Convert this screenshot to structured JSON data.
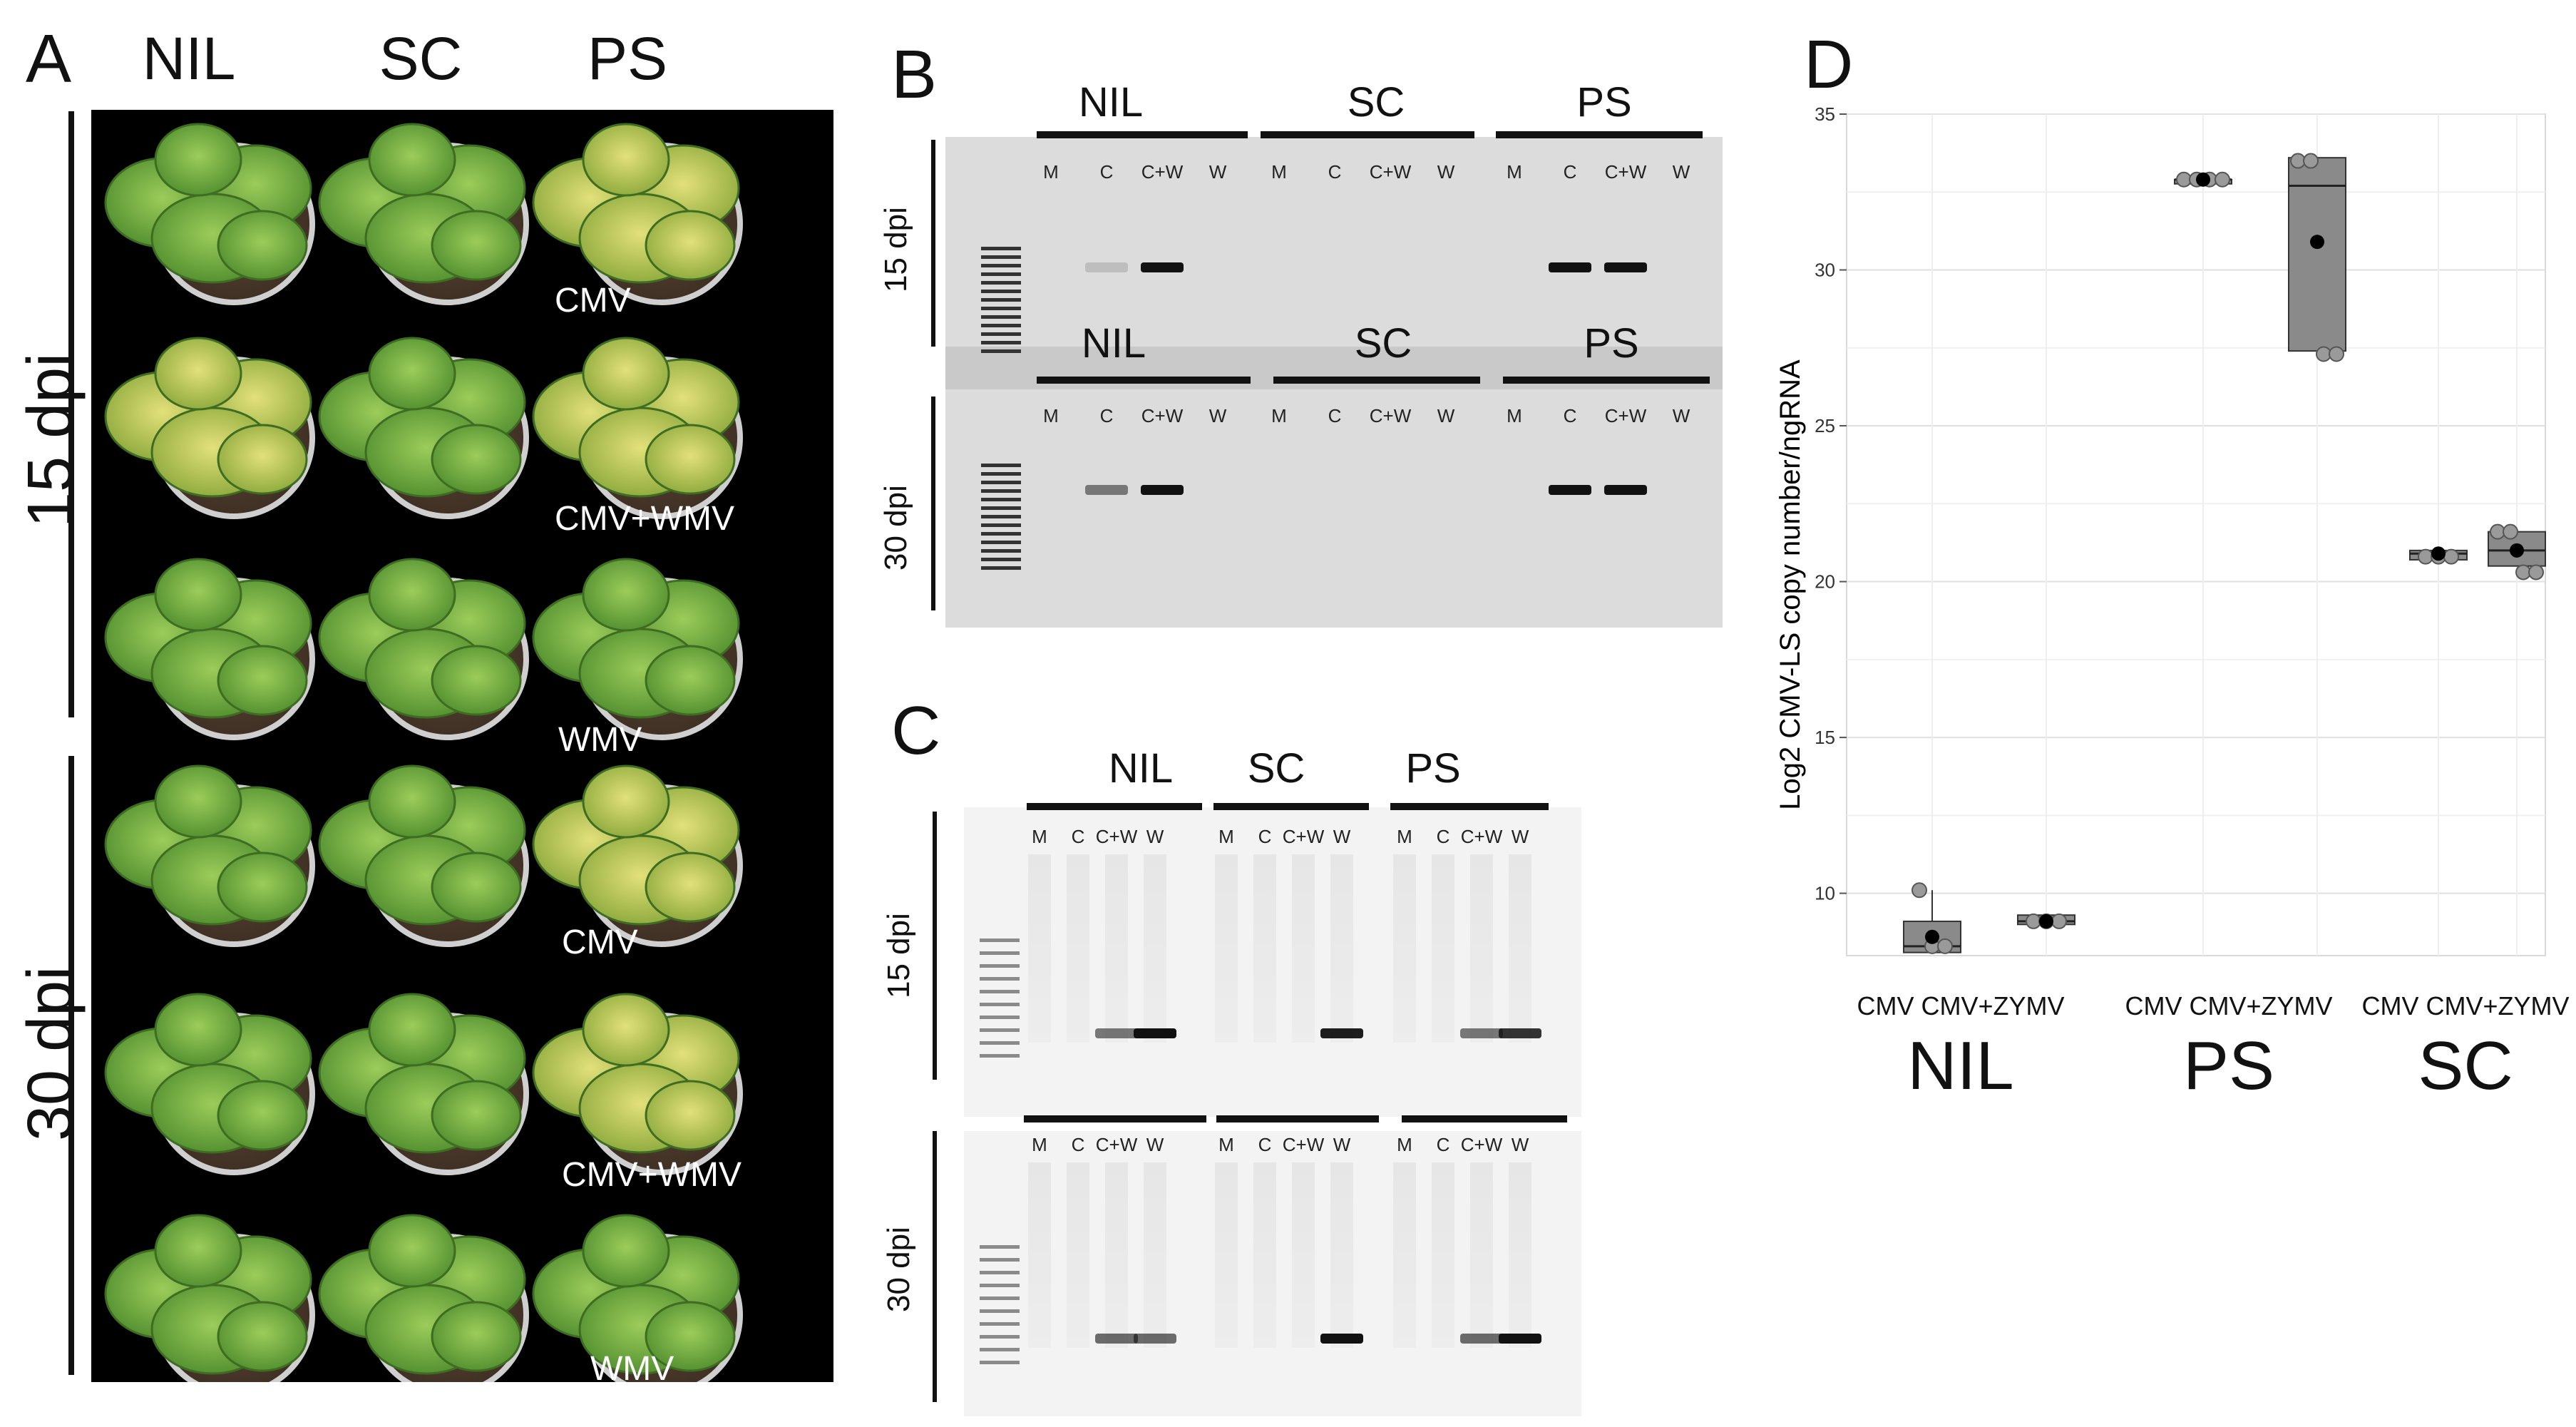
{
  "panels": {
    "A": {
      "letter": "A",
      "columns": [
        "NIL",
        "SC",
        "PS"
      ],
      "row_groups": [
        {
          "label": "15 dpi"
        },
        {
          "label": "30 dpi"
        }
      ],
      "treatments": [
        "CMV",
        "CMV+WMV",
        "WMV",
        "CMV",
        "CMV+WMV",
        "WMV"
      ]
    },
    "B": {
      "letter": "B",
      "groups": [
        "NIL",
        "SC",
        "PS"
      ],
      "lanes": [
        "M",
        "C",
        "C+W",
        "W"
      ],
      "rows": [
        {
          "label": "15 dpi"
        },
        {
          "label": "30 dpi"
        }
      ]
    },
    "C": {
      "letter": "C",
      "groups": [
        "NIL",
        "SC",
        "PS"
      ],
      "lanes": [
        "M",
        "C",
        "C+W",
        "W"
      ],
      "rows": [
        {
          "label": "15 dpi"
        },
        {
          "label": "30 dpi"
        }
      ]
    },
    "D": {
      "letter": "D",
      "group_labels": [
        "NIL",
        "PS",
        "SC"
      ],
      "category_labels": [
        "CMV CMV+ZYMV",
        "CMV CMV+ZYMV",
        "CMV CMV+ZYMV"
      ]
    }
  },
  "chart_data": {
    "type": "box",
    "ylabel": "Log2 CMV-LS copy number/ngRNA",
    "ylim": [
      8,
      35
    ],
    "yticks": [
      10,
      15,
      20,
      25,
      30,
      35
    ],
    "grid": true,
    "categories": [
      "NIL CMV",
      "NIL CMV+ZYMV",
      "PS CMV",
      "PS CMV+ZYMV",
      "SC CMV",
      "SC CMV+ZYMV"
    ],
    "boxes": [
      {
        "group": "NIL",
        "treatment": "CMV",
        "q1": 8.1,
        "median": 8.3,
        "q3": 9.1,
        "whisker_low": 8.1,
        "whisker_high": 10.1,
        "mean": 8.6,
        "points": [
          10.1,
          8.3,
          8.3
        ]
      },
      {
        "group": "NIL",
        "treatment": "CMV+ZYMV",
        "q1": 9.0,
        "median": 9.1,
        "q3": 9.3,
        "whisker_low": 9.0,
        "whisker_high": 9.3,
        "mean": 9.1,
        "points": [
          9.1,
          9.1,
          9.1
        ]
      },
      {
        "group": "PS",
        "treatment": "CMV",
        "q1": 32.8,
        "median": 32.9,
        "q3": 32.9,
        "whisker_low": 32.8,
        "whisker_high": 32.9,
        "mean": 32.9,
        "points": [
          32.9,
          32.9,
          32.9,
          32.9
        ]
      },
      {
        "group": "PS",
        "treatment": "CMV+ZYMV",
        "q1": 27.4,
        "median": 32.7,
        "q3": 33.6,
        "whisker_low": 27.4,
        "whisker_high": 33.6,
        "mean": 30.9,
        "points": [
          33.5,
          33.5,
          27.3,
          27.3
        ]
      },
      {
        "group": "SC",
        "treatment": "CMV",
        "q1": 20.7,
        "median": 20.9,
        "q3": 21.0,
        "whisker_low": 20.7,
        "whisker_high": 21.0,
        "mean": 20.9,
        "points": [
          20.8,
          20.8,
          20.8
        ]
      },
      {
        "group": "SC",
        "treatment": "CMV+ZYMV",
        "q1": 20.5,
        "median": 21.0,
        "q3": 21.6,
        "whisker_low": 20.5,
        "whisker_high": 21.6,
        "mean": 21.0,
        "points": [
          21.6,
          21.6,
          20.3,
          20.3
        ]
      }
    ]
  }
}
